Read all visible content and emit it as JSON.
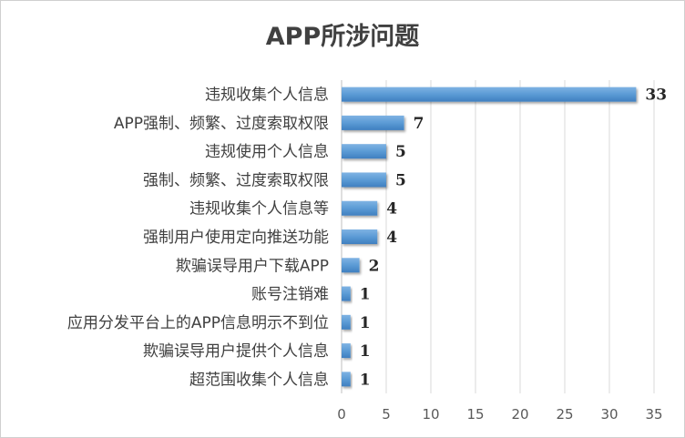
{
  "chart_data": {
    "type": "bar",
    "orientation": "horizontal",
    "title": "APP所涉问题",
    "categories": [
      "违规收集个人信息",
      "APP强制、频繁、过度索取权限",
      "违规使用个人信息",
      "强制、频繁、过度索取权限",
      "违规收集个人信息等",
      "强制用户使用定向推送功能",
      "欺骗误导用户下载APP",
      "账号注销难",
      "应用分发平台上的APP信息明示不到位",
      "欺骗误导用户提供个人信息",
      "超范围收集个人信息"
    ],
    "values": [
      33,
      7,
      5,
      5,
      4,
      4,
      2,
      1,
      1,
      1,
      1
    ],
    "xlim": [
      0,
      35
    ],
    "xticks": [
      "0",
      "5",
      "10",
      "15",
      "20",
      "25",
      "30",
      "35"
    ],
    "grid": "vertical",
    "data_labels": true,
    "legend": "none",
    "bar_color": "#5b9bd5"
  }
}
